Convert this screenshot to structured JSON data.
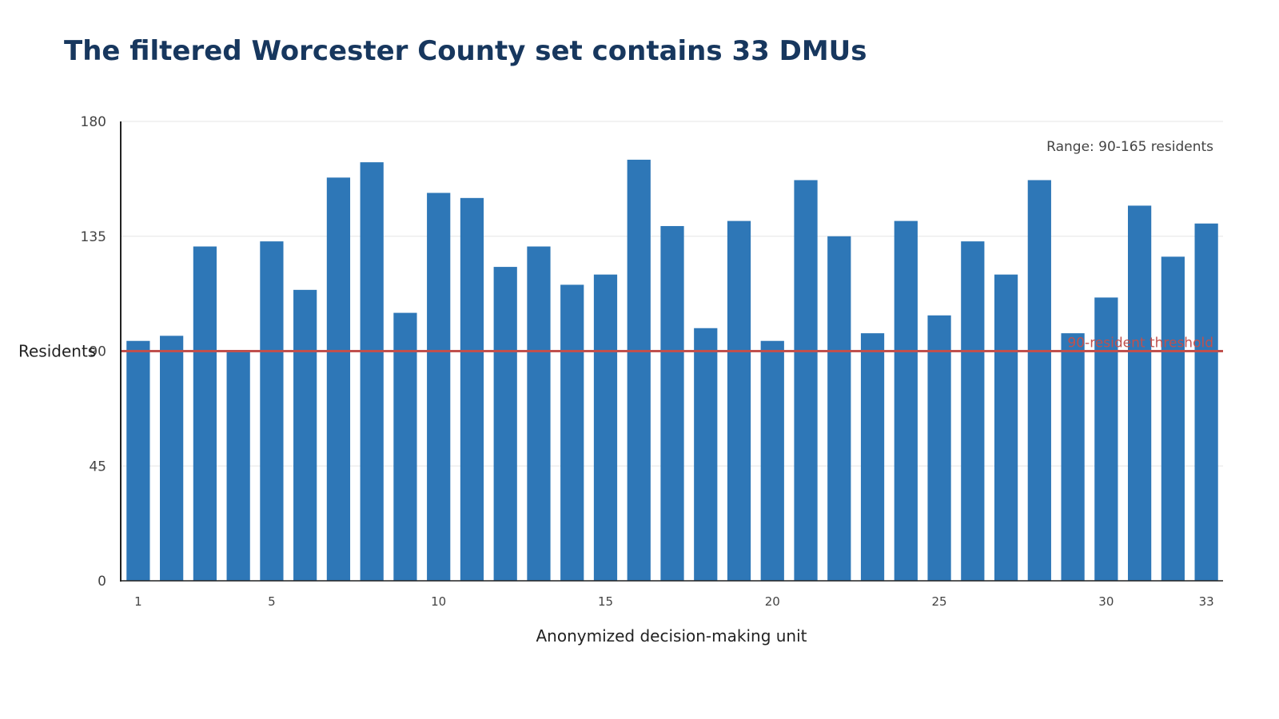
{
  "colors": {
    "title": "#17375e",
    "bar": "#2e77b7",
    "threshold": "#c0504d",
    "axis": "#222222",
    "grid": "#e6e6e6"
  },
  "chart_data": {
    "type": "bar",
    "title": "The filtered Worcester County set contains 33 DMUs",
    "xlabel": "Anonymized decision-making unit",
    "ylabel": "Residents",
    "ylim": [
      0,
      180
    ],
    "yticks": [
      0,
      45,
      90,
      135,
      180
    ],
    "xticks": [
      1,
      5,
      10,
      15,
      20,
      25,
      30,
      33
    ],
    "grid": "horizontal",
    "categories": [
      1,
      2,
      3,
      4,
      5,
      6,
      7,
      8,
      9,
      10,
      11,
      12,
      13,
      14,
      15,
      16,
      17,
      18,
      19,
      20,
      21,
      22,
      23,
      24,
      25,
      26,
      27,
      28,
      29,
      30,
      31,
      32,
      33
    ],
    "values": [
      94,
      96,
      131,
      90,
      133,
      114,
      158,
      164,
      105,
      152,
      150,
      123,
      131,
      116,
      120,
      165,
      139,
      99,
      141,
      94,
      157,
      135,
      97,
      141,
      104,
      133,
      120,
      157,
      97,
      111,
      147,
      127,
      140
    ],
    "threshold": {
      "value": 90,
      "label": "90-resident threshold"
    },
    "annotation": "Range: 90-165 residents"
  }
}
